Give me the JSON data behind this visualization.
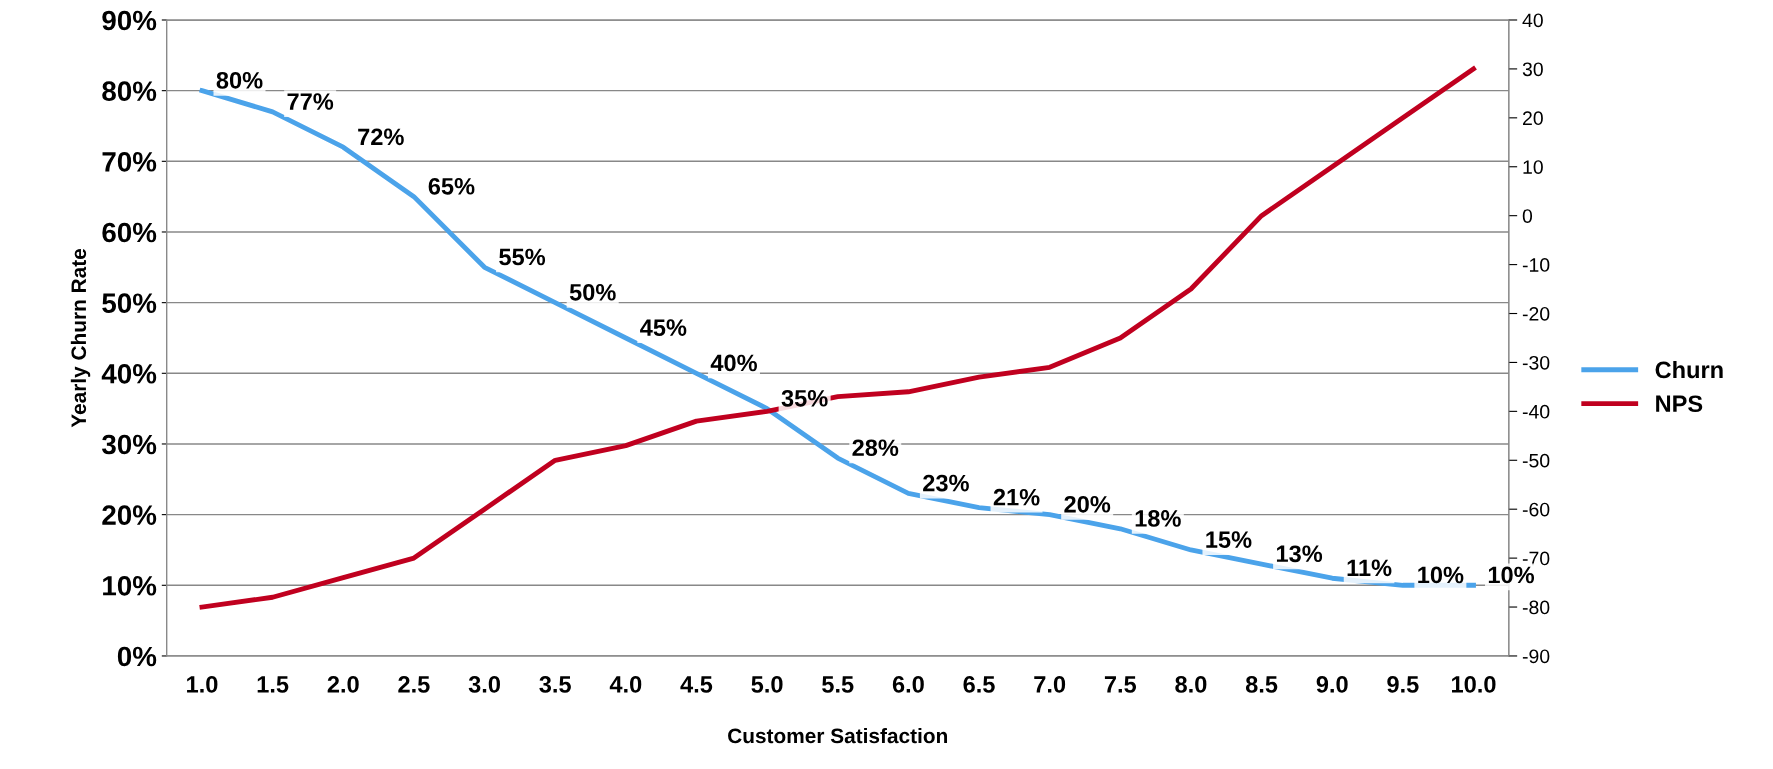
{
  "chart_data": {
    "type": "line",
    "xlabel": "Customer Satisfaction",
    "ylabel": "Yearly Churn Rate",
    "categories": [
      "1.0",
      "1.5",
      "2.0",
      "2.5",
      "3.0",
      "3.5",
      "4.0",
      "4.5",
      "5.0",
      "5.5",
      "6.0",
      "6.5",
      "7.0",
      "7.5",
      "8.0",
      "8.5",
      "9.0",
      "9.5",
      "10.0"
    ],
    "series": [
      {
        "name": "Churn",
        "color": "#4ba3ea",
        "values": [
          80,
          77,
          72,
          65,
          55,
          50,
          45,
          40,
          35,
          28,
          23,
          21,
          20,
          18,
          15,
          13,
          11,
          10,
          10
        ],
        "value_labels": [
          "80%",
          "77%",
          "72%",
          "65%",
          "55%",
          "50%",
          "45%",
          "40%",
          "35%",
          "28%",
          "23%",
          "21%",
          "20%",
          "18%",
          "15%",
          "13%",
          "11%",
          "10%",
          "10%"
        ]
      },
      {
        "name": "NPS",
        "color": "#c0001f",
        "axis": "y2",
        "values": [
          -80,
          -78,
          -74,
          -70,
          -60,
          -50,
          -47,
          -42,
          -40,
          -37,
          -36,
          -33,
          -31,
          -25,
          -15,
          0,
          10,
          20,
          30
        ]
      }
    ],
    "ylim": [
      0,
      90
    ],
    "yticks": [
      {
        "value": 0,
        "label": "0%"
      },
      {
        "value": 10,
        "label": "10%"
      },
      {
        "value": 20,
        "label": "20%"
      },
      {
        "value": 30,
        "label": "30%"
      },
      {
        "value": 40,
        "label": "40%"
      },
      {
        "value": 50,
        "label": "50%"
      },
      {
        "value": 60,
        "label": "60%"
      },
      {
        "value": 70,
        "label": "70%"
      },
      {
        "value": 80,
        "label": "80%"
      },
      {
        "value": 90,
        "label": "90%"
      }
    ],
    "y2lim": [
      -90,
      40
    ],
    "y2ticks": [
      -90,
      -80,
      -70,
      -60,
      -50,
      -40,
      -30,
      -20,
      -10,
      0,
      10,
      20,
      30,
      40
    ],
    "grid": true,
    "legend": "right",
    "marker": "none",
    "line_style": "solid"
  }
}
